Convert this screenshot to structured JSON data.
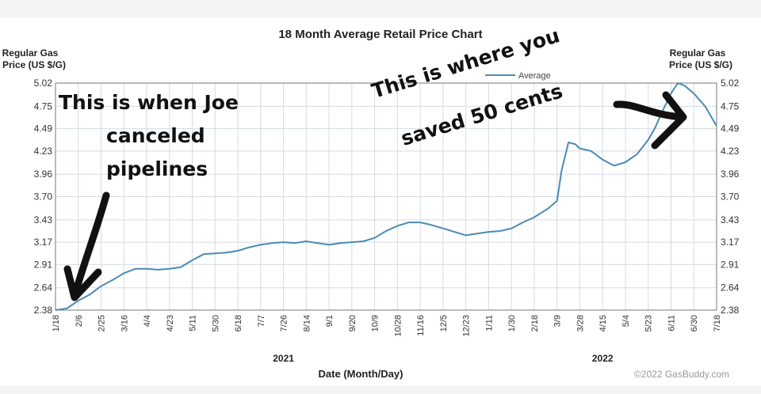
{
  "chart_data": {
    "type": "line",
    "title": "18 Month Average Retail Price Chart",
    "ylabel_left": [
      "Regular Gas",
      "Price (US $/G)"
    ],
    "ylabel_right": [
      "Regular Gas",
      "Price (US $/G)"
    ],
    "xlabel": "Date (Month/Day)",
    "legend": "Average",
    "legend_position": "top-right",
    "watermark": "©2022 GasBuddy.com",
    "grid": true,
    "ylim": [
      2.38,
      5.02
    ],
    "y_ticks": [
      "2.38",
      "2.64",
      "2.91",
      "3.17",
      "3.43",
      "3.70",
      "3.96",
      "4.23",
      "4.49",
      "4.75",
      "5.02"
    ],
    "x_ticks": [
      "1/18",
      "2/6",
      "2/25",
      "3/16",
      "4/4",
      "4/23",
      "5/11",
      "5/30",
      "6/18",
      "7/7",
      "7/26",
      "8/14",
      "9/1",
      "9/20",
      "10/9",
      "10/28",
      "11/16",
      "12/5",
      "12/23",
      "1/11",
      "1/30",
      "2/18",
      "3/9",
      "3/28",
      "4/15",
      "5/4",
      "5/23",
      "6/11",
      "6/30",
      "7/18"
    ],
    "year_labels": [
      {
        "label": "2021",
        "at_tick": 10
      },
      {
        "label": "2022",
        "at_tick": 24
      }
    ],
    "line_color": "#4a8bb5",
    "series": [
      {
        "x": [
          0,
          0.5,
          1,
          1.5,
          2,
          2.5,
          3,
          3.5,
          4,
          4.5,
          5,
          5.5,
          6,
          6.5,
          7,
          7.5,
          8,
          8.5,
          9,
          9.5,
          10,
          10.5,
          11,
          11.5,
          12,
          12.5,
          13,
          13.5,
          14,
          14.5,
          15,
          15.5,
          16,
          16.5,
          17,
          17.5,
          18,
          18.5,
          19,
          19.5,
          20,
          20.5,
          21,
          21.3,
          21.6,
          22,
          22.2,
          22.5,
          22.8,
          23,
          23.5,
          24,
          24.5,
          25,
          25.5,
          26,
          26.3,
          26.6,
          27,
          27.3,
          27.6,
          28,
          28.5,
          29
        ],
        "y": [
          2.38,
          2.4,
          2.49,
          2.56,
          2.66,
          2.73,
          2.81,
          2.86,
          2.86,
          2.85,
          2.86,
          2.88,
          2.96,
          3.03,
          3.04,
          3.05,
          3.07,
          3.11,
          3.14,
          3.16,
          3.17,
          3.16,
          3.18,
          3.16,
          3.14,
          3.16,
          3.17,
          3.18,
          3.22,
          3.3,
          3.36,
          3.4,
          3.4,
          3.37,
          3.33,
          3.29,
          3.25,
          3.27,
          3.29,
          3.3,
          3.33,
          3.4,
          3.46,
          3.51,
          3.56,
          3.65,
          4.0,
          4.33,
          4.31,
          4.26,
          4.23,
          4.13,
          4.06,
          4.1,
          4.19,
          4.36,
          4.5,
          4.68,
          4.9,
          5.02,
          4.99,
          4.9,
          4.75,
          4.52
        ]
      }
    ]
  },
  "annotations": {
    "joe_line1": "This is when Joe",
    "joe_line2": "canceled",
    "joe_line3": "pipelines",
    "saved_line1": "This is where you",
    "saved_line2": "saved 50 cents"
  }
}
